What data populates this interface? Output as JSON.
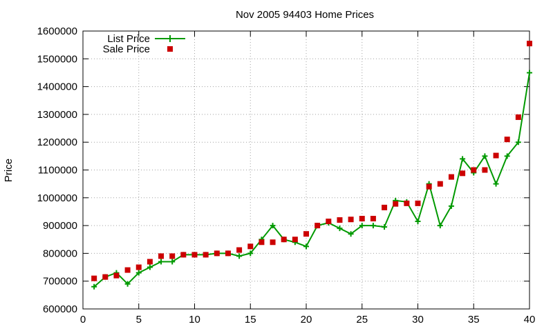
{
  "chart_data": {
    "type": "line",
    "title": "Nov 2005 94403 Home Prices",
    "xlabel": "",
    "ylabel": "Price",
    "xlim": [
      0,
      40
    ],
    "ylim": [
      600000,
      1600000
    ],
    "x_ticks": [
      0,
      5,
      10,
      15,
      20,
      25,
      30,
      35,
      40
    ],
    "y_ticks": [
      600000,
      700000,
      800000,
      900000,
      1000000,
      1100000,
      1200000,
      1300000,
      1400000,
      1500000,
      1600000
    ],
    "grid": true,
    "legend_position": "top-left",
    "series": [
      {
        "name": "List Price",
        "style": "line-with-plus-markers",
        "color": "#009900",
        "points": [
          [
            1,
            680000
          ],
          [
            2,
            715000
          ],
          [
            3,
            730000
          ],
          [
            4,
            690000
          ],
          [
            5,
            730000
          ],
          [
            6,
            750000
          ],
          [
            7,
            770000
          ],
          [
            8,
            770000
          ],
          [
            9,
            795000
          ],
          [
            10,
            795000
          ],
          [
            11,
            795000
          ],
          [
            12,
            800000
          ],
          [
            13,
            800000
          ],
          [
            14,
            790000
          ],
          [
            15,
            800000
          ],
          [
            16,
            850000
          ],
          [
            17,
            900000
          ],
          [
            18,
            850000
          ],
          [
            19,
            840000
          ],
          [
            20,
            825000
          ],
          [
            21,
            900000
          ],
          [
            22,
            910000
          ],
          [
            23,
            890000
          ],
          [
            24,
            870000
          ],
          [
            25,
            900000
          ],
          [
            26,
            900000
          ],
          [
            27,
            895000
          ],
          [
            28,
            990000
          ],
          [
            29,
            985000
          ],
          [
            30,
            915000
          ],
          [
            31,
            1050000
          ],
          [
            32,
            900000
          ],
          [
            33,
            970000
          ],
          [
            34,
            1140000
          ],
          [
            35,
            1090000
          ],
          [
            36,
            1150000
          ],
          [
            37,
            1050000
          ],
          [
            38,
            1150000
          ],
          [
            39,
            1200000
          ],
          [
            40,
            1450000
          ]
        ]
      },
      {
        "name": "Sale Price",
        "style": "square-markers",
        "color": "#cc0000",
        "points": [
          [
            1,
            710000
          ],
          [
            2,
            715000
          ],
          [
            3,
            720000
          ],
          [
            4,
            740000
          ],
          [
            5,
            750000
          ],
          [
            6,
            770000
          ],
          [
            7,
            790000
          ],
          [
            8,
            790000
          ],
          [
            9,
            795000
          ],
          [
            10,
            795000
          ],
          [
            11,
            795000
          ],
          [
            12,
            800000
          ],
          [
            13,
            800000
          ],
          [
            14,
            812000
          ],
          [
            15,
            825000
          ],
          [
            16,
            840000
          ],
          [
            17,
            840000
          ],
          [
            18,
            850000
          ],
          [
            19,
            850000
          ],
          [
            20,
            870000
          ],
          [
            21,
            900000
          ],
          [
            22,
            915000
          ],
          [
            23,
            920000
          ],
          [
            24,
            922000
          ],
          [
            25,
            925000
          ],
          [
            26,
            925000
          ],
          [
            27,
            965000
          ],
          [
            28,
            978000
          ],
          [
            29,
            980000
          ],
          [
            30,
            980000
          ],
          [
            31,
            1040000
          ],
          [
            32,
            1050000
          ],
          [
            33,
            1075000
          ],
          [
            34,
            1088000
          ],
          [
            35,
            1100000
          ],
          [
            36,
            1100000
          ],
          [
            37,
            1152000
          ],
          [
            38,
            1210000
          ],
          [
            39,
            1290000
          ],
          [
            40,
            1555000
          ]
        ]
      }
    ]
  }
}
